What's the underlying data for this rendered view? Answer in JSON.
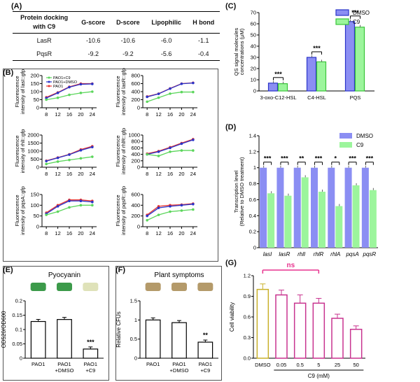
{
  "panel_labels": {
    "A": "(A)",
    "B": "(B)",
    "C": "(C)",
    "D": "(D)",
    "E": "(E)",
    "F": "(F)",
    "G": "(G)"
  },
  "table": {
    "header_line1": "Protein docking",
    "header_line2": "with C9",
    "columns": [
      "G-score",
      "D-score",
      "Lipophilic",
      "H bond"
    ],
    "rows": [
      {
        "name": "LasR",
        "values": [
          "-10.6",
          "-10.6",
          "-6.0",
          "-1.1"
        ]
      },
      {
        "name": "PqsR",
        "values": [
          "-9.2",
          "-9.2",
          "-5.6",
          "-0.4"
        ]
      }
    ]
  },
  "colors": {
    "pao1": "#e8342f",
    "pao1_dmso": "#2a34c9",
    "pao1_c9": "#5cd65c",
    "dmso_bar": "#8b8ef3",
    "c9_bar": "#9cf59c",
    "g_bar": "#c8338f",
    "g_dmso": "#c9b12a",
    "ns": "#e8338f"
  },
  "chart_data": [
    {
      "type": "line",
      "id": "B1",
      "ylabel": "Fluorescence intensity of lasI::gfp",
      "x": [
        8,
        12,
        16,
        20,
        24
      ],
      "ylim": [
        0,
        200
      ],
      "yticks": [
        0,
        50,
        100,
        150,
        200
      ],
      "legend": [
        "PAO1+C9",
        "PAO1+DMSO",
        "PAO1"
      ],
      "series": [
        {
          "name": "PAO1",
          "values": [
            65,
            95,
            130,
            150,
            150
          ]
        },
        {
          "name": "PAO1+DMSO",
          "values": [
            60,
            92,
            128,
            146,
            148
          ]
        },
        {
          "name": "PAO1+C9",
          "values": [
            50,
            62,
            80,
            92,
            100
          ]
        }
      ]
    },
    {
      "type": "line",
      "id": "B2",
      "ylabel": "Fluorescence intensity of lasR::gfp",
      "x": [
        8,
        12,
        16,
        20,
        24
      ],
      "ylim": [
        0,
        800
      ],
      "yticks": [
        0,
        200,
        400,
        600,
        800
      ],
      "series": [
        {
          "name": "PAO1",
          "values": [
            280,
            350,
            480,
            600,
            620
          ]
        },
        {
          "name": "PAO1+DMSO",
          "values": [
            270,
            345,
            475,
            595,
            615
          ]
        },
        {
          "name": "PAO1+C9",
          "values": [
            150,
            250,
            350,
            390,
            390
          ]
        }
      ]
    },
    {
      "type": "line",
      "id": "B3",
      "ylabel": "Fluorescence intensity of rhlI::gfp",
      "x": [
        8,
        12,
        16,
        20,
        24
      ],
      "ylim": [
        0,
        2000
      ],
      "yticks": [
        0,
        500,
        1000,
        1500,
        2000
      ],
      "series": [
        {
          "name": "PAO1",
          "values": [
            400,
            600,
            800,
            1100,
            1300
          ]
        },
        {
          "name": "PAO1+DMSO",
          "values": [
            380,
            580,
            780,
            1050,
            1250
          ]
        },
        {
          "name": "PAO1+C9",
          "values": [
            200,
            350,
            450,
            550,
            650
          ]
        }
      ]
    },
    {
      "type": "line",
      "id": "B4",
      "ylabel": "Fluorescence intensity of rhlR::gfp",
      "x": [
        8,
        12,
        16,
        20,
        24
      ],
      "ylim": [
        0,
        1000
      ],
      "yticks": [
        0,
        200,
        400,
        600,
        800,
        1000
      ],
      "series": [
        {
          "name": "PAO1",
          "values": [
            420,
            500,
            620,
            750,
            870
          ]
        },
        {
          "name": "PAO1+DMSO",
          "values": [
            400,
            480,
            600,
            730,
            850
          ]
        },
        {
          "name": "PAO1+C9",
          "values": [
            400,
            350,
            480,
            520,
            520
          ]
        }
      ]
    },
    {
      "type": "line",
      "id": "B5",
      "ylabel": "Fluorescence intensity of pqsA::gfp",
      "x": [
        8,
        12,
        16,
        20,
        24
      ],
      "ylim": [
        0,
        150
      ],
      "yticks": [
        0,
        50,
        100,
        150
      ],
      "series": [
        {
          "name": "PAO1",
          "values": [
            65,
            100,
            125,
            125,
            120
          ]
        },
        {
          "name": "PAO1+DMSO",
          "values": [
            60,
            95,
            120,
            120,
            115
          ]
        },
        {
          "name": "PAO1+C9",
          "values": [
            55,
            70,
            90,
            100,
            100
          ]
        }
      ]
    },
    {
      "type": "line",
      "id": "B6",
      "ylabel": "Fluorescence intensity of pqsR::gfp",
      "x": [
        8,
        12,
        16,
        20,
        24
      ],
      "ylim": [
        0,
        600
      ],
      "yticks": [
        0,
        200,
        400,
        600
      ],
      "series": [
        {
          "name": "PAO1",
          "values": [
            220,
            380,
            400,
            410,
            430
          ]
        },
        {
          "name": "PAO1+DMSO",
          "values": [
            200,
            350,
            380,
            400,
            420
          ]
        },
        {
          "name": "PAO1+C9",
          "values": [
            120,
            220,
            280,
            300,
            320
          ]
        }
      ]
    },
    {
      "type": "bar",
      "id": "C",
      "categories": [
        "3-oxo-C12-HSL",
        "C4-HSL",
        "PQS"
      ],
      "ylabel_line1": "QS signal molecules",
      "ylabel_line2": "concentrations (μM)",
      "ylim": [
        0,
        70
      ],
      "yticks": [
        0,
        10,
        20,
        30,
        40,
        50,
        60,
        70
      ],
      "legend": [
        "DMSO",
        "C9"
      ],
      "series": [
        {
          "name": "DMSO",
          "values": [
            7,
            30,
            62
          ]
        },
        {
          "name": "C9",
          "values": [
            6.5,
            26,
            57
          ]
        }
      ],
      "annotations": [
        "***",
        "***",
        "***"
      ]
    },
    {
      "type": "bar",
      "id": "D",
      "categories": [
        "lasI",
        "lasR",
        "rhlI",
        "rhlR",
        "rhlA",
        "pqsA",
        "pqsR"
      ],
      "ylabel_line1": "Transcription level",
      "ylabel_line2": "(Relative to DMSO treatment)",
      "ylim": [
        0,
        1.4
      ],
      "yticks": [
        0,
        0.2,
        0.4,
        0.6,
        0.8,
        1.0,
        1.2,
        1.4
      ],
      "legend": [
        "DMSO",
        "C9"
      ],
      "series": [
        {
          "name": "DMSO",
          "values": [
            1,
            1,
            1,
            1,
            1,
            1,
            1
          ]
        },
        {
          "name": "C9",
          "values": [
            0.68,
            0.65,
            0.88,
            0.7,
            0.52,
            0.78,
            0.72
          ]
        }
      ],
      "annotations": [
        "***",
        "***",
        "**",
        "***",
        "*",
        "***",
        "***"
      ]
    },
    {
      "type": "bar",
      "id": "E",
      "title": "Pyocyanin",
      "ylabel": "OD520/OD600",
      "ylim": [
        0,
        0.2
      ],
      "yticks": [
        0,
        0.05,
        0.1,
        0.15,
        0.2
      ],
      "categories": [
        [
          "PAO1"
        ],
        [
          "PAO1",
          "+DMSO"
        ],
        [
          "PAO1",
          "+C9"
        ]
      ],
      "values": [
        0.128,
        0.135,
        0.032
      ],
      "annotations": [
        "",
        "",
        "***"
      ]
    },
    {
      "type": "bar",
      "id": "F",
      "title": "Plant symptoms",
      "ylabel": "Relative CFUs",
      "ylim": [
        0,
        1.5
      ],
      "yticks": [
        0,
        0.5,
        1.0,
        1.5
      ],
      "categories": [
        [
          "PAO1"
        ],
        [
          "PAO1",
          "+DMSO"
        ],
        [
          "PAO1",
          "+C9"
        ]
      ],
      "values": [
        1.0,
        0.93,
        0.42
      ],
      "annotations": [
        "",
        "",
        "**"
      ]
    },
    {
      "type": "bar",
      "id": "G",
      "ylabel": "Cell viability",
      "xlabel": "C9 (mM)",
      "ylim": [
        0,
        1.2
      ],
      "yticks": [
        0.0,
        0.3,
        0.6,
        0.9,
        1.2
      ],
      "categories": [
        "DMSO",
        "0.05",
        "0.5",
        "5",
        "25",
        "50"
      ],
      "values": [
        1.0,
        0.92,
        0.8,
        0.8,
        0.58,
        0.42
      ],
      "errors": [
        0.08,
        0.07,
        0.12,
        0.07,
        0.06,
        0.05
      ],
      "ns_label": "ns"
    }
  ]
}
